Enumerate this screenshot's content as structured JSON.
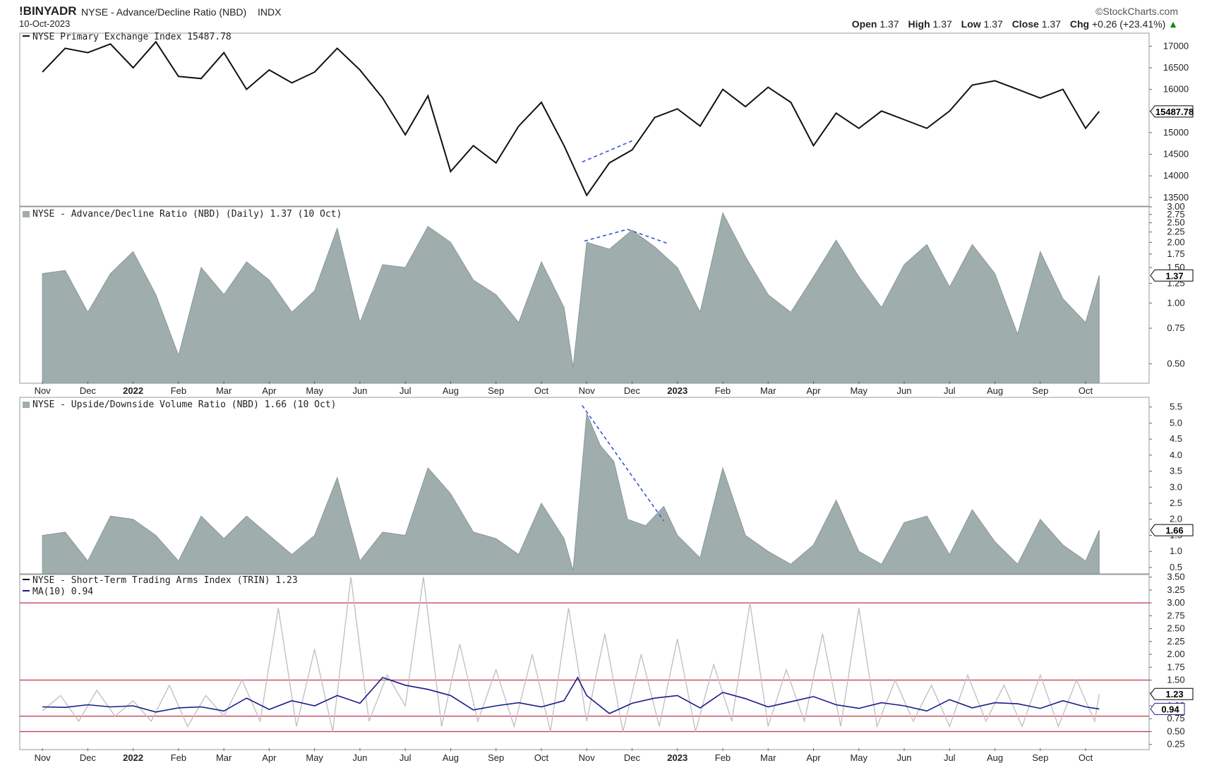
{
  "header": {
    "symbol": "!BINYADR",
    "description": "NYSE - Advance/Decline Ratio (NBD)",
    "exchange": "INDX",
    "date": "10-Oct-2023",
    "brand": "©StockCharts.com",
    "open_label": "Open",
    "open": "1.37",
    "high_label": "High",
    "high": "1.37",
    "low_label": "Low",
    "low": "1.37",
    "close_label": "Close",
    "close": "1.37",
    "chg_label": "Chg",
    "chg": "+0.26 (+23.41%)",
    "up_arrow": "▲"
  },
  "colors": {
    "price_line": "#111111",
    "area_fill": "#a0adad",
    "area_stroke": "#8a9898",
    "trin_raw": "#c2c2c2",
    "trin_ma": "#1a1a8c",
    "ref_lines": "#c8324a",
    "annotation": "#3355dd",
    "grid": "#999999"
  },
  "x_axis": {
    "months": [
      {
        "label": "Nov",
        "bold": false
      },
      {
        "label": "Dec",
        "bold": false
      },
      {
        "label": "2022",
        "bold": true
      },
      {
        "label": "Feb",
        "bold": false
      },
      {
        "label": "Mar",
        "bold": false
      },
      {
        "label": "Apr",
        "bold": false
      },
      {
        "label": "May",
        "bold": false
      },
      {
        "label": "Jun",
        "bold": false
      },
      {
        "label": "Jul",
        "bold": false
      },
      {
        "label": "Aug",
        "bold": false
      },
      {
        "label": "Sep",
        "bold": false
      },
      {
        "label": "Oct",
        "bold": false
      },
      {
        "label": "Nov",
        "bold": false
      },
      {
        "label": "Dec",
        "bold": false
      },
      {
        "label": "2023",
        "bold": true
      },
      {
        "label": "Feb",
        "bold": false
      },
      {
        "label": "Mar",
        "bold": false
      },
      {
        "label": "Apr",
        "bold": false
      },
      {
        "label": "May",
        "bold": false
      },
      {
        "label": "Jun",
        "bold": false
      },
      {
        "label": "Jul",
        "bold": false
      },
      {
        "label": "Aug",
        "bold": false
      },
      {
        "label": "Sep",
        "bold": false
      },
      {
        "label": "Oct",
        "bold": false
      }
    ]
  },
  "chart_data": [
    {
      "id": "nyse",
      "type": "line",
      "title": "NYSE Primary Exchange Index 15487.78",
      "last_label": "15487.78",
      "ylim": [
        13300,
        17300
      ],
      "y_ticks": [
        "13500",
        "14000",
        "14500",
        "15000",
        "15500",
        "16000",
        "16500",
        "17000"
      ],
      "x": [
        0,
        0.5,
        1,
        1.5,
        2,
        2.5,
        3,
        3.5,
        4,
        4.5,
        5,
        5.5,
        6,
        6.5,
        7,
        7.5,
        8,
        8.5,
        9,
        9.5,
        10,
        10.5,
        11,
        11.5,
        12,
        12.5,
        13,
        13.5,
        14,
        14.5,
        15,
        15.5,
        16,
        16.5,
        17,
        17.5,
        18,
        18.5,
        19,
        19.5,
        20,
        20.5,
        21,
        21.5,
        22,
        22.5,
        23,
        23.3
      ],
      "values": [
        16400,
        16950,
        16850,
        17050,
        16500,
        17100,
        16300,
        16250,
        16850,
        16000,
        16450,
        16150,
        16400,
        16950,
        16450,
        15800,
        14950,
        15850,
        14100,
        14700,
        14300,
        15150,
        15700,
        14700,
        13550,
        14300,
        14600,
        15350,
        15550,
        15150,
        16000,
        15600,
        16050,
        15700,
        14700,
        15450,
        15100,
        15500,
        15300,
        15100,
        15500,
        16100,
        16200,
        16000,
        15800,
        16000,
        15100,
        15490
      ],
      "annotation": {
        "x": [
          11.9,
          13.0
        ],
        "y": [
          14320,
          14810
        ]
      }
    },
    {
      "id": "adr",
      "type": "area",
      "scale": "log",
      "title": "NYSE - Advance/Decline Ratio (NBD) (Daily) 1.37 (10 Oct)",
      "last_label": "1.37",
      "ylim": [
        0.4,
        3.0
      ],
      "y_ticks": [
        "0.50",
        "0.75",
        "1.00",
        "1.25",
        "1.50",
        "1.75",
        "2.00",
        "2.25",
        "2.50",
        "2.75",
        "3.00"
      ],
      "x": [
        0,
        0.5,
        1,
        1.5,
        2,
        2.5,
        3,
        3.5,
        4,
        4.5,
        5,
        5.5,
        6,
        6.5,
        7,
        7.5,
        8,
        8.5,
        9,
        9.5,
        10,
        10.5,
        11,
        11.5,
        11.7,
        12,
        12.5,
        13,
        13.5,
        14,
        14.5,
        15,
        15.5,
        16,
        16.5,
        17,
        17.5,
        18,
        18.5,
        19,
        19.5,
        20,
        20.5,
        21,
        21.5,
        22,
        22.5,
        23,
        23.3
      ],
      "values": [
        1.4,
        1.45,
        0.9,
        1.4,
        1.8,
        1.1,
        0.55,
        1.5,
        1.1,
        1.6,
        1.3,
        0.9,
        1.15,
        2.35,
        0.8,
        1.55,
        1.5,
        2.4,
        2.0,
        1.3,
        1.1,
        0.8,
        1.6,
        0.95,
        0.48,
        2.0,
        1.85,
        2.3,
        1.9,
        1.5,
        0.9,
        2.8,
        1.7,
        1.1,
        0.9,
        1.35,
        2.05,
        1.35,
        0.95,
        1.55,
        1.95,
        1.2,
        1.95,
        1.4,
        0.7,
        1.8,
        1.05,
        0.8,
        1.37
      ],
      "annotation": {
        "x": [
          11.95,
          12.9,
          13.8
        ],
        "y": [
          2.03,
          2.32,
          1.97
        ]
      }
    },
    {
      "id": "udvr",
      "type": "area",
      "title": "NYSE - Upside/Downside Volume Ratio (NBD) 1.66 (10 Oct)",
      "last_label": "1.66",
      "ylim": [
        0.3,
        5.8
      ],
      "y_ticks": [
        "0.5",
        "1.0",
        "1.5",
        "2.0",
        "2.5",
        "3.0",
        "3.5",
        "4.0",
        "4.5",
        "5.0",
        "5.5"
      ],
      "x": [
        0,
        0.5,
        1,
        1.5,
        2,
        2.5,
        3,
        3.5,
        4,
        4.5,
        5,
        5.5,
        6,
        6.5,
        7,
        7.5,
        8,
        8.5,
        9,
        9.5,
        10,
        10.5,
        11,
        11.5,
        11.7,
        12,
        12.3,
        12.6,
        12.9,
        13.3,
        13.7,
        14,
        14.5,
        15,
        15.5,
        16,
        16.5,
        17,
        17.5,
        18,
        18.5,
        19,
        19.5,
        20,
        20.5,
        21,
        21.5,
        22,
        22.5,
        23,
        23.3
      ],
      "values": [
        1.5,
        1.6,
        0.7,
        2.1,
        2.0,
        1.5,
        0.7,
        2.1,
        1.4,
        2.1,
        1.5,
        0.9,
        1.5,
        3.3,
        0.7,
        1.6,
        1.5,
        3.6,
        2.8,
        1.6,
        1.4,
        0.9,
        2.5,
        1.4,
        0.4,
        5.3,
        4.3,
        3.8,
        2.0,
        1.8,
        2.4,
        1.5,
        0.8,
        3.6,
        1.5,
        1.0,
        0.6,
        1.2,
        2.6,
        1.0,
        0.6,
        1.9,
        2.1,
        0.9,
        2.3,
        1.3,
        0.6,
        2.0,
        1.2,
        0.7,
        1.66
      ],
      "annotation": {
        "x": [
          11.9,
          13.7
        ],
        "y": [
          5.55,
          1.95
        ]
      }
    },
    {
      "id": "trin",
      "type": "line",
      "title": "NYSE - Short-Term Trading Arms Index (TRIN) 1.23",
      "ma_title": "MA(10) 0.94",
      "last_label": "1.23",
      "ma_last_label": "0.94",
      "ylim": [
        0.15,
        3.55
      ],
      "y_ticks": [
        "0.25",
        "0.50",
        "0.75",
        "1.00",
        "1.25",
        "1.50",
        "1.75",
        "2.00",
        "2.25",
        "2.50",
        "2.75",
        "3.00",
        "3.25",
        "3.50"
      ],
      "reference_lines": [
        0.5,
        0.8,
        1.5,
        3.0
      ],
      "series": [
        {
          "name": "TRIN",
          "x": [
            0,
            0.4,
            0.8,
            1.2,
            1.6,
            2,
            2.4,
            2.8,
            3.2,
            3.6,
            4,
            4.4,
            4.8,
            5.2,
            5.6,
            6,
            6.4,
            6.8,
            7.2,
            7.6,
            8,
            8.4,
            8.8,
            9.2,
            9.6,
            10,
            10.4,
            10.8,
            11.2,
            11.6,
            12,
            12.4,
            12.8,
            13.2,
            13.6,
            14,
            14.4,
            14.8,
            15.2,
            15.6,
            16,
            16.4,
            16.8,
            17.2,
            17.6,
            18,
            18.4,
            18.8,
            19.2,
            19.6,
            20,
            20.4,
            20.8,
            21.2,
            21.6,
            22,
            22.4,
            22.8,
            23.2,
            23.3
          ],
          "values": [
            0.9,
            1.2,
            0.7,
            1.3,
            0.8,
            1.1,
            0.7,
            1.4,
            0.6,
            1.2,
            0.8,
            1.5,
            0.7,
            2.9,
            0.6,
            2.1,
            0.5,
            3.5,
            0.7,
            1.6,
            1.0,
            3.5,
            0.6,
            2.2,
            0.7,
            1.7,
            0.6,
            2.0,
            0.5,
            2.9,
            0.7,
            2.4,
            0.5,
            2.0,
            0.6,
            2.3,
            0.5,
            1.8,
            0.7,
            3.0,
            0.6,
            1.7,
            0.7,
            2.4,
            0.6,
            2.9,
            0.6,
            1.5,
            0.7,
            1.4,
            0.6,
            1.6,
            0.7,
            1.4,
            0.6,
            1.6,
            0.6,
            1.5,
            0.7,
            1.23
          ]
        },
        {
          "name": "MA(10)",
          "x": [
            0,
            0.5,
            1,
            1.5,
            2,
            2.5,
            3,
            3.5,
            4,
            4.5,
            5,
            5.5,
            6,
            6.5,
            7,
            7.5,
            8,
            8.5,
            9,
            9.5,
            10,
            10.5,
            11,
            11.5,
            11.8,
            12,
            12.5,
            13,
            13.5,
            14,
            14.5,
            15,
            15.5,
            16,
            16.5,
            17,
            17.5,
            18,
            18.5,
            19,
            19.5,
            20,
            20.5,
            21,
            21.5,
            22,
            22.5,
            23,
            23.3
          ],
          "values": [
            0.98,
            0.97,
            1.02,
            0.98,
            1.0,
            0.88,
            0.96,
            0.98,
            0.9,
            1.15,
            0.93,
            1.1,
            1.0,
            1.2,
            1.05,
            1.55,
            1.4,
            1.32,
            1.2,
            0.92,
            1.0,
            1.06,
            0.98,
            1.1,
            1.55,
            1.2,
            0.85,
            1.05,
            1.15,
            1.2,
            0.96,
            1.26,
            1.14,
            0.98,
            1.08,
            1.18,
            1.02,
            0.95,
            1.06,
            1.0,
            0.9,
            1.12,
            0.96,
            1.06,
            1.04,
            0.95,
            1.1,
            0.98,
            0.94
          ]
        }
      ]
    }
  ]
}
